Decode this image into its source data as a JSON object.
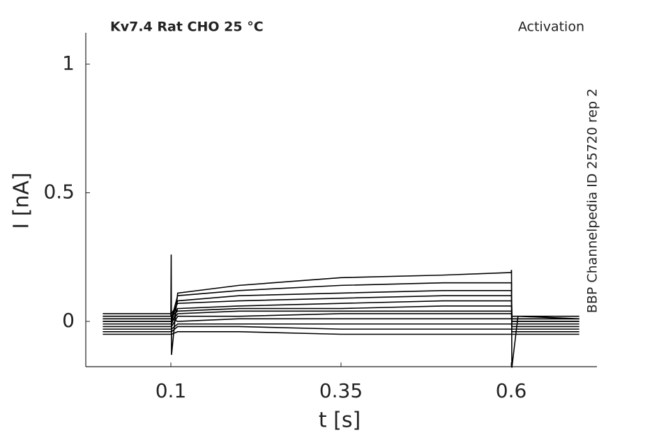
{
  "chart_data": {
    "type": "line",
    "title": "Kv7.4  Rat  CHO  25 °C",
    "subtitle": "Activation",
    "annotation": "BBP Channelpedia ID 25720 rep 2",
    "xlabel": "t [s]",
    "ylabel": "I [nA]",
    "xlim": [
      -0.025,
      0.726
    ],
    "ylim": [
      -0.176,
      1.122
    ],
    "xticks": [
      0.1,
      0.35,
      0.6
    ],
    "yticks": [
      0,
      0.5,
      1
    ],
    "x": [
      0,
      0.1,
      0.1005,
      0.101,
      0.11,
      0.2,
      0.35,
      0.5,
      0.6,
      0.6005,
      0.601,
      0.61,
      0.7
    ],
    "series": [
      {
        "color": "#000000",
        "values": [
          0.02,
          0.02,
          0.26,
          -0.13,
          0.11,
          0.14,
          0.17,
          0.18,
          0.19,
          0.2,
          -0.18,
          0.02,
          0.01
        ]
      },
      {
        "color": "#000000",
        "values": [
          0.01,
          0.01,
          0.01,
          0.01,
          0.1,
          0.12,
          0.14,
          0.15,
          0.15,
          0.15,
          0.01,
          0.01,
          0.01
        ]
      },
      {
        "color": "#000000",
        "values": [
          0,
          0,
          0,
          0,
          0.08,
          0.1,
          0.11,
          0.12,
          0.12,
          0.12,
          0,
          0,
          0
        ]
      },
      {
        "color": "#000000",
        "values": [
          0.03,
          0.03,
          0.03,
          0.03,
          0.07,
          0.08,
          0.09,
          0.1,
          0.1,
          0.1,
          0.02,
          0.02,
          0.02
        ]
      },
      {
        "color": "#000000",
        "values": [
          -0.01,
          -0.01,
          -0.01,
          -0.01,
          0.05,
          0.06,
          0.07,
          0.08,
          0.08,
          0.08,
          -0.01,
          -0.01,
          -0.01
        ]
      },
      {
        "color": "#000000",
        "values": [
          0.02,
          0.02,
          0.02,
          0.02,
          0.04,
          0.05,
          0.05,
          0.06,
          0.06,
          0.06,
          0.01,
          0.01,
          0.01
        ]
      },
      {
        "color": "#000000",
        "values": [
          0,
          0,
          0,
          0,
          0.03,
          0.04,
          0.04,
          0.04,
          0.04,
          0.04,
          0,
          0,
          0
        ]
      },
      {
        "color": "#000000",
        "values": [
          -0.02,
          -0.02,
          -0.02,
          -0.02,
          0.02,
          0.02,
          0.03,
          0.03,
          0.03,
          0.03,
          -0.02,
          -0.02,
          -0.02
        ]
      },
      {
        "color": "#000000",
        "values": [
          0.01,
          0.01,
          0.01,
          0.01,
          0,
          0.01,
          0.01,
          0.01,
          0.01,
          0.01,
          0.01,
          0.01,
          0.01
        ]
      },
      {
        "color": "#000000",
        "values": [
          -0.03,
          -0.03,
          -0.03,
          -0.03,
          -0.01,
          -0.01,
          -0.01,
          -0.01,
          -0.01,
          -0.01,
          -0.03,
          -0.03,
          -0.03
        ]
      },
      {
        "color": "#000000",
        "values": [
          -0.04,
          -0.04,
          -0.04,
          -0.04,
          -0.02,
          -0.02,
          -0.03,
          -0.03,
          -0.03,
          -0.03,
          -0.04,
          -0.04,
          -0.04
        ]
      },
      {
        "color": "#000000",
        "values": [
          -0.05,
          -0.05,
          -0.05,
          -0.05,
          -0.04,
          -0.04,
          -0.05,
          -0.05,
          -0.05,
          -0.05,
          -0.05,
          -0.05,
          -0.05
        ]
      }
    ]
  }
}
